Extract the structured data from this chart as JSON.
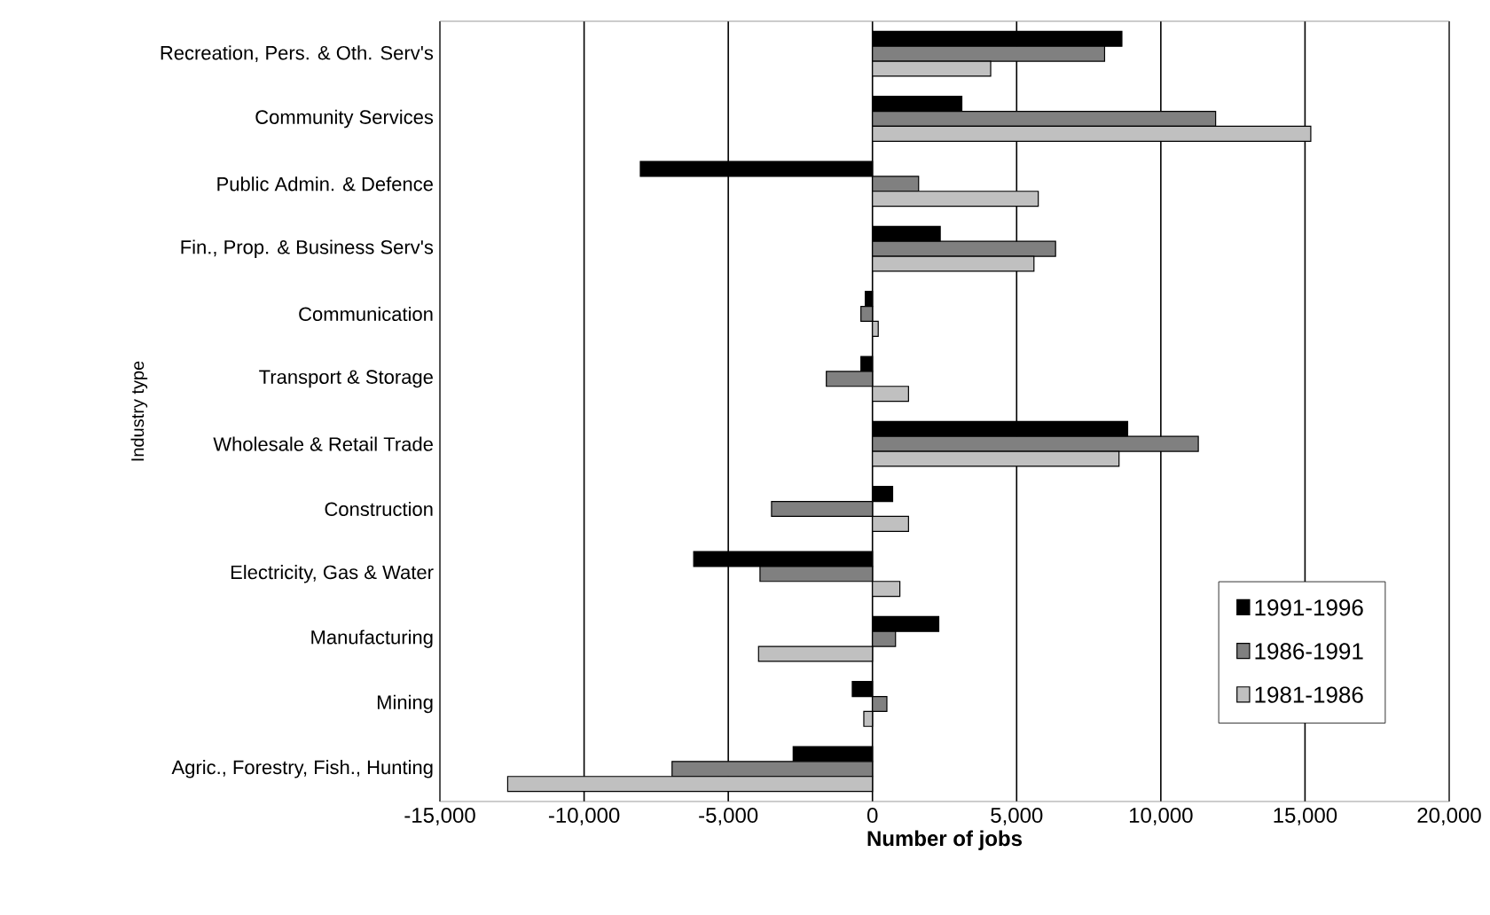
{
  "chart_data": {
    "type": "bar",
    "orientation": "horizontal",
    "xlabel": "Number of jobs",
    "ylabel": "Industry type",
    "categories": [
      "Recreation, Pers. & Oth. Serv's",
      "Community Services",
      "Public Admin. & Defence",
      "Fin., Prop. & Business Serv's",
      "Communication",
      "Transport & Storage",
      "Wholesale & Retail Trade",
      "Construction",
      "Electricity, Gas & Water",
      "Manufacturing",
      "Mining",
      "Agric., Forestry, Fish., Hunting"
    ],
    "series": [
      {
        "name": "1991-1996",
        "color": "#000000",
        "values": [
          8650,
          3100,
          -8050,
          2350,
          -250,
          -400,
          8850,
          700,
          -6200,
          2300,
          -700,
          -2750
        ]
      },
      {
        "name": "1986-1991",
        "color": "#808080",
        "values": [
          8050,
          11900,
          1600,
          6350,
          -400,
          -1600,
          11300,
          -3500,
          -3900,
          800,
          500,
          -6950
        ]
      },
      {
        "name": "1981-1986",
        "color": "#c0c0c0",
        "values": [
          4100,
          15200,
          5750,
          5600,
          200,
          1250,
          8550,
          1250,
          950,
          -3950,
          -300,
          -12650
        ]
      }
    ],
    "xlim": [
      -15000,
      20000
    ],
    "xticks": [
      {
        "value": -15000,
        "label": "-15,000"
      },
      {
        "value": -10000,
        "label": "-10,000"
      },
      {
        "value": -5000,
        "label": "-5,000"
      },
      0,
      {
        "value": 5000,
        "label": "5,000"
      },
      {
        "value": 10000,
        "label": "10,000"
      },
      {
        "value": 15000,
        "label": "15,000"
      },
      {
        "value": 20000,
        "label": "20,000"
      }
    ],
    "grid": "x",
    "legend": "bottom right"
  }
}
